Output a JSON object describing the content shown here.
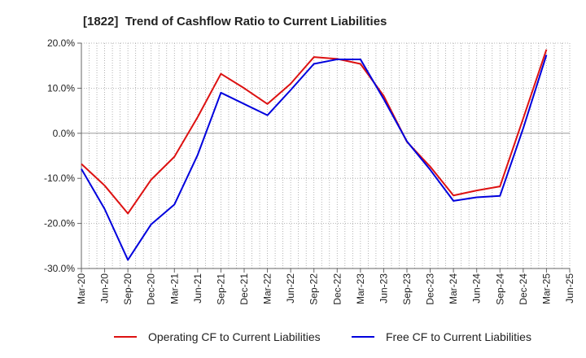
{
  "chart_data": {
    "type": "line",
    "title": "[1822]  Trend of Cashflow Ratio to Current Liabilities",
    "xlabel": "",
    "ylabel": "",
    "x": [
      "Mar-20",
      "Jun-20",
      "Sep-20",
      "Dec-20",
      "Mar-21",
      "Jun-21",
      "Sep-21",
      "Dec-21",
      "Mar-22",
      "Jun-22",
      "Sep-22",
      "Dec-22",
      "Mar-23",
      "Jun-23",
      "Sep-23",
      "Dec-23",
      "Mar-24",
      "Jun-24",
      "Sep-24",
      "Dec-24",
      "Mar-25",
      "Jun-25"
    ],
    "ylim": [
      -30,
      20
    ],
    "yticks": [
      20,
      10,
      0,
      -10,
      -20,
      -30
    ],
    "ytick_labels": [
      "20.0%",
      "10.0%",
      "0.0%",
      "-10.0%",
      "-20.0%",
      "-30.0%"
    ],
    "grid": true,
    "legend": "bottom",
    "series": [
      {
        "name": "Operating CF to Current Liabilities",
        "color": "#dd1111",
        "values": [
          -6.8,
          -11.6,
          -17.8,
          -10.3,
          -5.2,
          3.6,
          13.2,
          10.0,
          6.5,
          11.0,
          16.9,
          16.5,
          15.4,
          8.3,
          -1.9,
          -7.4,
          -13.8,
          -12.7,
          -11.8,
          3.3,
          18.6,
          null
        ]
      },
      {
        "name": "Free CF to Current Liabilities",
        "color": "#0000dd",
        "values": [
          -7.9,
          -16.8,
          -28.1,
          -20.2,
          -15.8,
          -4.8,
          9.0,
          6.5,
          4.0,
          9.6,
          15.4,
          16.4,
          16.4,
          7.6,
          -1.8,
          -8.1,
          -15.0,
          -14.2,
          -13.9,
          1.1,
          17.4,
          null
        ]
      }
    ]
  }
}
